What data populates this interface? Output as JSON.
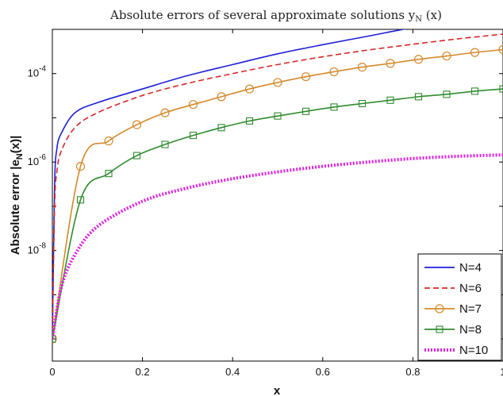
{
  "chart_data": {
    "type": "line",
    "title_main": "Absolute errors of several approximate solutions y",
    "title_sub": "N",
    "title_tail": " (x)",
    "xlabel": "x",
    "ylabel_main": "Absolute error |e",
    "ylabel_sub": "N",
    "ylabel_tail": "(x)|",
    "x_scale": "linear",
    "y_scale": "log",
    "xlim": [
      0,
      1
    ],
    "ylim_log10": [
      -10.5,
      -3
    ],
    "x_ticks": [
      {
        "value": 0,
        "label": "0"
      },
      {
        "value": 0.2,
        "label": "0.2"
      },
      {
        "value": 0.4,
        "label": "0.4"
      },
      {
        "value": 0.6,
        "label": "0.6"
      },
      {
        "value": 0.8,
        "label": "0.8"
      },
      {
        "value": 1,
        "label": "1"
      }
    ],
    "y_ticks": [
      {
        "value_log10": -8,
        "base": "10",
        "exp": "-8"
      },
      {
        "value_log10": -6,
        "base": "10",
        "exp": "-6"
      },
      {
        "value_log10": -4,
        "base": "10",
        "exp": "-4"
      }
    ],
    "grid": false,
    "legend_position": "bottom-right",
    "series": [
      {
        "name": "N=4",
        "color": "#1f1fd6",
        "dash": "solid",
        "marker": "none",
        "x": [
          0.0,
          0.005,
          0.01,
          0.02,
          0.05,
          0.1,
          0.2,
          0.3,
          0.4,
          0.5,
          0.6,
          0.7,
          0.8,
          0.9,
          1.0
        ],
        "y": [
          1e-10,
          3e-07,
          2e-06,
          4.5e-06,
          1.3e-05,
          2.2e-05,
          4.5e-05,
          9e-05,
          0.00016,
          0.00028,
          0.00045,
          0.0007,
          0.0011,
          0.0016,
          0.0022
        ]
      },
      {
        "name": "N=6",
        "color": "#d62728",
        "dash": "dashed",
        "marker": "none",
        "x": [
          0.0,
          0.005,
          0.01,
          0.02,
          0.05,
          0.1,
          0.2,
          0.3,
          0.4,
          0.5,
          0.6,
          0.7,
          0.8,
          0.9,
          1.0
        ],
        "y": [
          1e-10,
          1e-07,
          6e-07,
          1.8e-06,
          6e-06,
          1.3e-05,
          3.2e-05,
          6e-05,
          0.0001,
          0.00016,
          0.00024,
          0.00034,
          0.00046,
          0.00061,
          0.00078
        ]
      },
      {
        "name": "N=7",
        "color": "#d4892a",
        "dash": "solid",
        "marker": "circle",
        "x": [
          0.0,
          0.0625,
          0.125,
          0.1875,
          0.25,
          0.3125,
          0.375,
          0.4375,
          0.5,
          0.5625,
          0.625,
          0.6875,
          0.75,
          0.8125,
          0.875,
          0.9375,
          1.0
        ],
        "y": [
          1e-10,
          8e-07,
          3e-06,
          7e-06,
          1.3e-05,
          2e-05,
          3e-05,
          4.5e-05,
          6.3e-05,
          8.5e-05,
          0.00011,
          0.00014,
          0.00017,
          0.00021,
          0.00025,
          0.0003,
          0.00035
        ]
      },
      {
        "name": "N=8",
        "color": "#2e8b2e",
        "dash": "solid",
        "marker": "square",
        "x": [
          0.0,
          0.0625,
          0.125,
          0.1875,
          0.25,
          0.3125,
          0.375,
          0.4375,
          0.5,
          0.5625,
          0.625,
          0.6875,
          0.75,
          0.8125,
          0.875,
          0.9375,
          1.0
        ],
        "y": [
          1e-10,
          1.4e-07,
          5.5e-07,
          1.4e-06,
          2.5e-06,
          4e-06,
          6e-06,
          8.5e-06,
          1.1e-05,
          1.4e-05,
          1.75e-05,
          2.1e-05,
          2.5e-05,
          3e-05,
          3.4e-05,
          4e-05,
          4.5e-05
        ]
      },
      {
        "name": "N=10",
        "color": "#e020e0",
        "dash": "dotted",
        "marker": "none",
        "x": [
          0.0,
          0.02,
          0.05,
          0.1,
          0.2,
          0.3,
          0.4,
          0.5,
          0.6,
          0.7,
          0.8,
          0.9,
          1.0
        ],
        "y": [
          1e-10,
          1.5e-09,
          8e-09,
          3.5e-08,
          1.3e-07,
          2.6e-07,
          4.2e-07,
          6e-07,
          8e-07,
          1e-06,
          1.2e-06,
          1.35e-06,
          1.45e-06
        ]
      }
    ]
  }
}
